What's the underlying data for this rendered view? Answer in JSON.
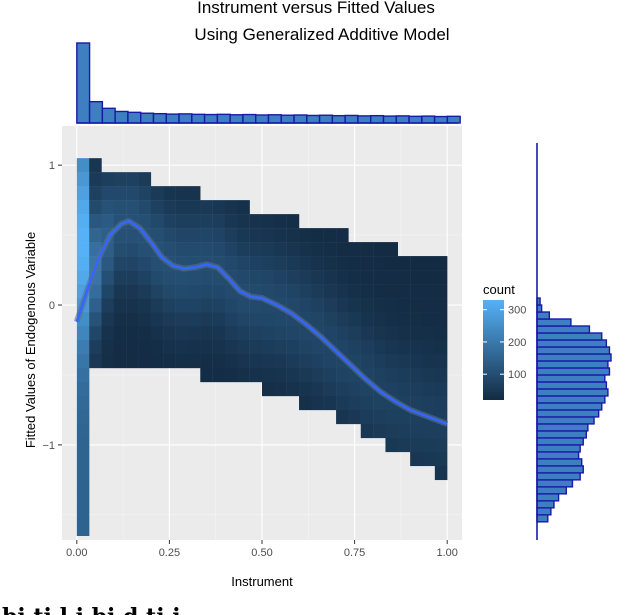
{
  "chart_data": {
    "type": "heatmap",
    "title_lines": [
      "Instrument versus Fitted Values",
      "Using Generalized Additive Model"
    ],
    "xlabel": "Instrument",
    "ylabel": "Fitted Values of Endogenous Variable",
    "xlim": [
      -0.04,
      1.04
    ],
    "ylim": [
      -1.68,
      1.28
    ],
    "x_ticks": [
      0,
      0.25,
      0.5,
      0.75,
      1
    ],
    "x_tick_labels": [
      "0.00",
      "0.25",
      "0.50",
      "0.75",
      "1.00"
    ],
    "y_ticks": [
      1,
      0,
      -1
    ],
    "y_tick_labels": [
      "1",
      "0",
      "−1"
    ],
    "grid": true,
    "legend": {
      "title": "count",
      "position": "right",
      "range": [
        20,
        330
      ],
      "ticks": [
        100,
        200,
        300
      ],
      "tick_labels": [
        "100",
        "200",
        "300"
      ],
      "low_color": "#132b43",
      "high_color": "#56b1f7"
    },
    "smooth_curve": {
      "color": "#3366ff",
      "x": [
        0.0,
        0.03,
        0.06,
        0.09,
        0.12,
        0.14,
        0.17,
        0.2,
        0.23,
        0.26,
        0.29,
        0.32,
        0.35,
        0.38,
        0.41,
        0.44,
        0.47,
        0.5,
        0.54,
        0.58,
        0.62,
        0.66,
        0.7,
        0.74,
        0.78,
        0.82,
        0.86,
        0.9,
        0.95,
        1.0
      ],
      "y": [
        -0.12,
        0.12,
        0.34,
        0.5,
        0.58,
        0.6,
        0.55,
        0.45,
        0.34,
        0.28,
        0.26,
        0.27,
        0.29,
        0.27,
        0.19,
        0.1,
        0.06,
        0.05,
        0.0,
        -0.06,
        -0.14,
        -0.23,
        -0.33,
        -0.43,
        -0.53,
        -0.62,
        -0.69,
        -0.75,
        -0.8,
        -0.85
      ]
    },
    "top_histogram": {
      "bin_width": 0.0345,
      "x_start": 0,
      "counts": [
        1800,
        480,
        330,
        260,
        240,
        220,
        210,
        200,
        205,
        195,
        190,
        195,
        185,
        190,
        180,
        185,
        175,
        180,
        170,
        175,
        165,
        170,
        160,
        165,
        155,
        160,
        150,
        155,
        145,
        150
      ]
    },
    "right_histogram": {
      "bin_width": 0.05,
      "y_start": -1.55,
      "counts": [
        70,
        90,
        110,
        140,
        190,
        230,
        280,
        300,
        290,
        270,
        280,
        300,
        320,
        330,
        370,
        400,
        420,
        440,
        460,
        450,
        440,
        470,
        460,
        480,
        470,
        450,
        420,
        340,
        220,
        80,
        30,
        20
      ]
    },
    "bottom_caption": "bi  ti     l   i  bi  d     ti          i"
  }
}
